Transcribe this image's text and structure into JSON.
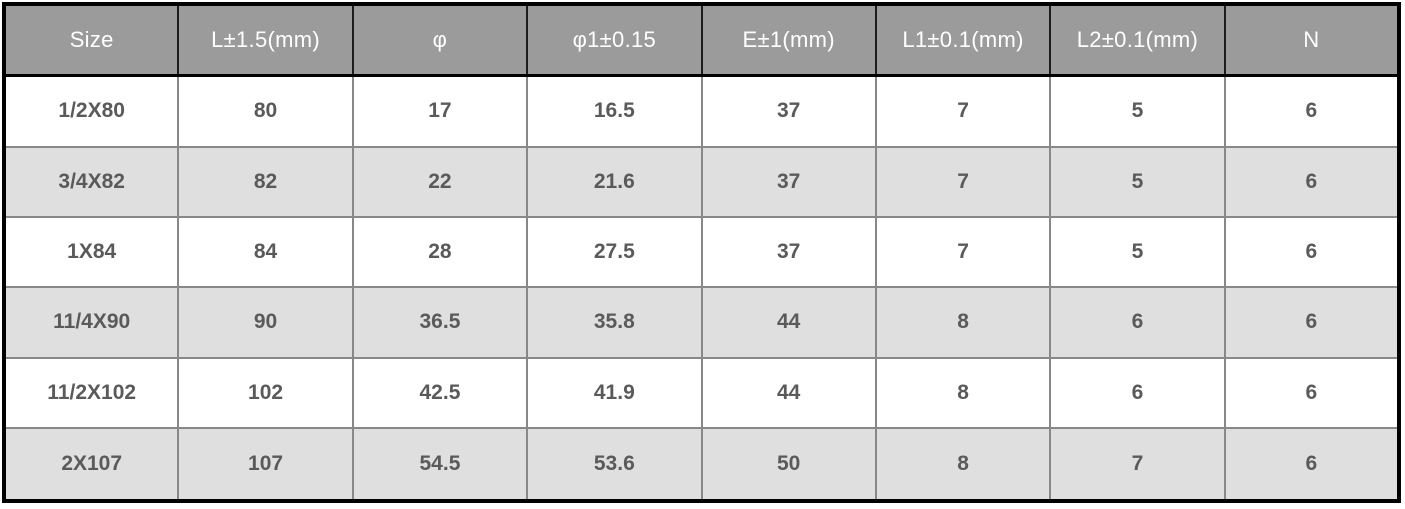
{
  "table": {
    "headers": [
      "Size",
      "L±1.5(mm)",
      "φ",
      "φ1±0.15",
      "E±1(mm)",
      "L1±0.1(mm)",
      "L2±0.1(mm)",
      "N"
    ],
    "rows": [
      {
        "cells": [
          "1/2X80",
          "80",
          "17",
          "16.5",
          "37",
          "7",
          "5",
          "6"
        ]
      },
      {
        "cells": [
          "3/4X82",
          "82",
          "22",
          "21.6",
          "37",
          "7",
          "5",
          "6"
        ]
      },
      {
        "cells": [
          "1X84",
          "84",
          "28",
          "27.5",
          "37",
          "7",
          "5",
          "6"
        ]
      },
      {
        "cells": [
          "11/4X90",
          "90",
          "36.5",
          "35.8",
          "44",
          "8",
          "6",
          "6"
        ]
      },
      {
        "cells": [
          "11/2X102",
          "102",
          "42.5",
          "41.9",
          "44",
          "8",
          "6",
          "6"
        ]
      },
      {
        "cells": [
          "2X107",
          "107",
          "54.5",
          "53.6",
          "50",
          "8",
          "7",
          "6"
        ]
      }
    ]
  },
  "colors": {
    "header_bg": "#9b9b9b",
    "header_text": "#ffffff",
    "row_even_bg": "#ffffff",
    "row_odd_bg": "#dfdfdf",
    "cell_text": "#5a5a5a",
    "outer_border": "#000000",
    "inner_border": "#888888"
  }
}
